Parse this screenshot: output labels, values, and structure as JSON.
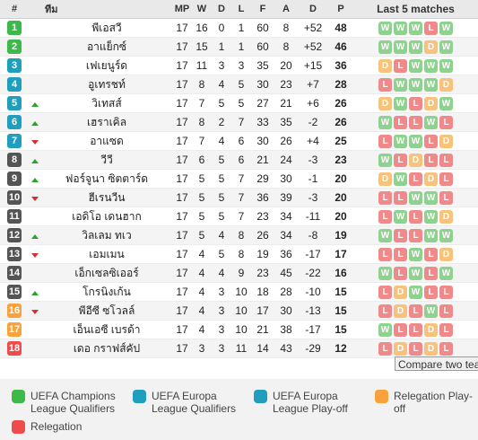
{
  "columns": {
    "rank": "#",
    "team": "ทีม",
    "mp": "MP",
    "w": "W",
    "d": "D",
    "l": "L",
    "f": "F",
    "a": "A",
    "gd": "D",
    "p": "P",
    "last5": "Last 5 matches"
  },
  "colors": {
    "green": "#3db94a",
    "teal": "#1f9ebe",
    "orange": "#f9a13a",
    "red": "#ee4c4c",
    "formW": "#8fd18f",
    "formD": "#f7c27c",
    "formL": "#f08a8a"
  },
  "rows": [
    {
      "rank": "1",
      "zone": "green",
      "trend": "",
      "team": "พีเอสวี",
      "mp": "17",
      "w": "16",
      "d": "0",
      "l": "1",
      "f": "60",
      "a": "8",
      "gd": "+52",
      "p": "48",
      "form": [
        "W",
        "W",
        "W",
        "L",
        "W"
      ]
    },
    {
      "rank": "2",
      "zone": "green",
      "trend": "",
      "team": "อาแย็กซ์",
      "mp": "17",
      "w": "15",
      "d": "1",
      "l": "1",
      "f": "60",
      "a": "8",
      "gd": "+52",
      "p": "46",
      "form": [
        "W",
        "W",
        "W",
        "D",
        "W"
      ]
    },
    {
      "rank": "3",
      "zone": "teal",
      "trend": "",
      "team": "เฟเยนูร์ด",
      "mp": "17",
      "w": "11",
      "d": "3",
      "l": "3",
      "f": "35",
      "a": "20",
      "gd": "+15",
      "p": "36",
      "form": [
        "D",
        "L",
        "W",
        "W",
        "W"
      ]
    },
    {
      "rank": "4",
      "zone": "teal",
      "trend": "",
      "team": "อูเทรชท์",
      "mp": "17",
      "w": "8",
      "d": "4",
      "l": "5",
      "f": "30",
      "a": "23",
      "gd": "+7",
      "p": "28",
      "form": [
        "L",
        "W",
        "W",
        "W",
        "D"
      ]
    },
    {
      "rank": "5",
      "zone": "teal",
      "trend": "up",
      "team": "วิเทสส์",
      "mp": "17",
      "w": "7",
      "d": "5",
      "l": "5",
      "f": "27",
      "a": "21",
      "gd": "+6",
      "p": "26",
      "form": [
        "D",
        "W",
        "L",
        "D",
        "W"
      ]
    },
    {
      "rank": "6",
      "zone": "teal",
      "trend": "up",
      "team": "เฮราเคิล",
      "mp": "17",
      "w": "8",
      "d": "2",
      "l": "7",
      "f": "33",
      "a": "35",
      "gd": "-2",
      "p": "26",
      "form": [
        "W",
        "L",
        "L",
        "W",
        "L"
      ]
    },
    {
      "rank": "7",
      "zone": "teal",
      "trend": "down",
      "team": "อาแซด",
      "mp": "17",
      "w": "7",
      "d": "4",
      "l": "6",
      "f": "30",
      "a": "26",
      "gd": "+4",
      "p": "25",
      "form": [
        "L",
        "W",
        "W",
        "L",
        "D"
      ]
    },
    {
      "rank": "8",
      "zone": "",
      "trend": "up",
      "team": "วีวี",
      "mp": "17",
      "w": "6",
      "d": "5",
      "l": "6",
      "f": "21",
      "a": "24",
      "gd": "-3",
      "p": "23",
      "form": [
        "W",
        "L",
        "D",
        "L",
        "L"
      ]
    },
    {
      "rank": "9",
      "zone": "",
      "trend": "up",
      "team": "ฟอร์จูนา ซิตตาร์ด",
      "mp": "17",
      "w": "5",
      "d": "5",
      "l": "7",
      "f": "29",
      "a": "30",
      "gd": "-1",
      "p": "20",
      "form": [
        "D",
        "W",
        "L",
        "D",
        "L"
      ]
    },
    {
      "rank": "10",
      "zone": "",
      "trend": "down",
      "team": "ฮีเรนวีน",
      "mp": "17",
      "w": "5",
      "d": "5",
      "l": "7",
      "f": "36",
      "a": "39",
      "gd": "-3",
      "p": "20",
      "form": [
        "L",
        "L",
        "W",
        "W",
        "L"
      ]
    },
    {
      "rank": "11",
      "zone": "",
      "trend": "",
      "team": "เอดิโอ เดนฮาก",
      "mp": "17",
      "w": "5",
      "d": "5",
      "l": "7",
      "f": "23",
      "a": "34",
      "gd": "-11",
      "p": "20",
      "form": [
        "L",
        "W",
        "L",
        "W",
        "D"
      ]
    },
    {
      "rank": "12",
      "zone": "",
      "trend": "up",
      "team": "วิลเลม ทเว",
      "mp": "17",
      "w": "5",
      "d": "4",
      "l": "8",
      "f": "26",
      "a": "34",
      "gd": "-8",
      "p": "19",
      "form": [
        "W",
        "L",
        "L",
        "W",
        "W"
      ]
    },
    {
      "rank": "13",
      "zone": "",
      "trend": "down",
      "team": "เอมเมน",
      "mp": "17",
      "w": "4",
      "d": "5",
      "l": "8",
      "f": "19",
      "a": "36",
      "gd": "-17",
      "p": "17",
      "form": [
        "L",
        "L",
        "W",
        "L",
        "D"
      ]
    },
    {
      "rank": "14",
      "zone": "",
      "trend": "",
      "team": "เอ็กเซลซิเออร์",
      "mp": "17",
      "w": "4",
      "d": "4",
      "l": "9",
      "f": "23",
      "a": "45",
      "gd": "-22",
      "p": "16",
      "form": [
        "W",
        "L",
        "W",
        "L",
        "W"
      ]
    },
    {
      "rank": "15",
      "zone": "",
      "trend": "up",
      "team": "โกรนิงเก้น",
      "mp": "17",
      "w": "4",
      "d": "3",
      "l": "10",
      "f": "18",
      "a": "28",
      "gd": "-10",
      "p": "15",
      "form": [
        "L",
        "D",
        "W",
        "L",
        "L"
      ]
    },
    {
      "rank": "16",
      "zone": "orange",
      "trend": "down",
      "team": "พีอีซี ซโวลล์",
      "mp": "17",
      "w": "4",
      "d": "3",
      "l": "10",
      "f": "17",
      "a": "30",
      "gd": "-13",
      "p": "15",
      "form": [
        "L",
        "D",
        "L",
        "W",
        "L"
      ]
    },
    {
      "rank": "17",
      "zone": "orange",
      "trend": "",
      "team": "เอ็นเอซี เบรด้า",
      "mp": "17",
      "w": "4",
      "d": "3",
      "l": "10",
      "f": "21",
      "a": "38",
      "gd": "-17",
      "p": "15",
      "form": [
        "W",
        "L",
        "L",
        "D",
        "L"
      ]
    },
    {
      "rank": "18",
      "zone": "red",
      "trend": "",
      "team": "เดอ กราฟส์คัป",
      "mp": "17",
      "w": "3",
      "d": "3",
      "l": "11",
      "f": "14",
      "a": "43",
      "gd": "-29",
      "p": "12",
      "form": [
        "L",
        "D",
        "L",
        "D",
        "L"
      ]
    }
  ],
  "compare_button": "Compare two teams",
  "legend": [
    {
      "color": "green",
      "line1": "UEFA Champions",
      "line2": "League Qualifiers"
    },
    {
      "color": "teal",
      "line1": "UEFA Europa",
      "line2": "League Qualifiers"
    },
    {
      "color": "teal",
      "line1": "UEFA Europa",
      "line2": "League Play-off"
    },
    {
      "color": "orange",
      "line1": "Relegation Play-",
      "line2": "off"
    },
    {
      "color": "red",
      "line1": "Relegation",
      "line2": ""
    }
  ]
}
